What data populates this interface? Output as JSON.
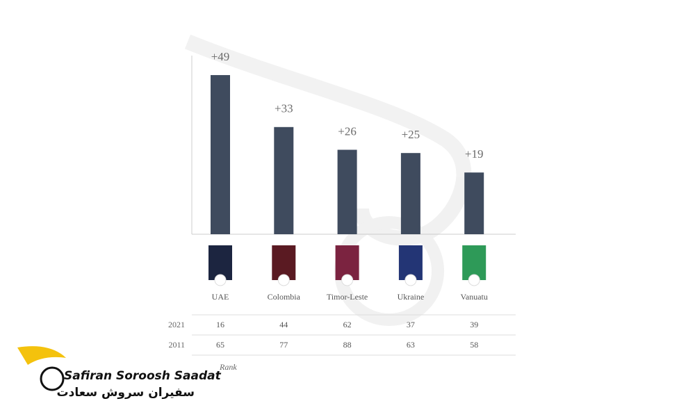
{
  "chart_data": {
    "type": "bar",
    "categories": [
      "UAE",
      "Colombia",
      "Timor-Leste",
      "Ukraine",
      "Vanuatu"
    ],
    "values": [
      49,
      33,
      26,
      25,
      19
    ],
    "value_labels": [
      "+49",
      "+33",
      "+26",
      "+25",
      "+19"
    ],
    "color": "#3f4b5e",
    "ylim": [
      0,
      55
    ]
  },
  "rank_table": {
    "label": "Rank",
    "rows": [
      {
        "year": "2021",
        "values": [
          16,
          44,
          62,
          37,
          39
        ]
      },
      {
        "year": "2011",
        "values": [
          65,
          77,
          88,
          63,
          58
        ]
      }
    ]
  },
  "logo": {
    "name": "Safiran Soroosh Saadat",
    "name_fa": "سفیران سروش سعادت"
  }
}
